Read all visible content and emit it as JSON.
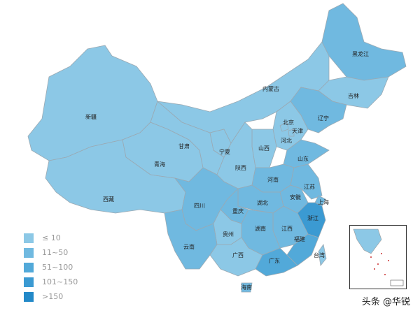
{
  "colors": {
    "le10": "#8cc8e6",
    "11_50": "#70b9e0",
    "51_100": "#52a9d9",
    "101_150": "#3b9ad2",
    "gt150": "#2389c8"
  },
  "legend": [
    {
      "label": "≤ 10",
      "color": "#8cc8e6"
    },
    {
      "label": "11~50",
      "color": "#70b9e0"
    },
    {
      "label": "51~100",
      "color": "#52a9d9"
    },
    {
      "label": "101~150",
      "color": "#3b9ad2"
    },
    {
      "label": ">150",
      "color": "#2389c8"
    }
  ],
  "provinces": [
    {
      "name": "新疆",
      "level": "le10"
    },
    {
      "name": "西藏",
      "level": "le10"
    },
    {
      "name": "青海",
      "level": "le10"
    },
    {
      "name": "甘肃",
      "level": "le10"
    },
    {
      "name": "内蒙古",
      "level": "le10"
    },
    {
      "name": "黑龙江",
      "level": "11_50"
    },
    {
      "name": "吉林",
      "level": "le10"
    },
    {
      "name": "辽宁",
      "level": "11_50"
    },
    {
      "name": "北京",
      "level": "le10"
    },
    {
      "name": "天津",
      "level": "le10"
    },
    {
      "name": "河北",
      "level": "le10"
    },
    {
      "name": "山西",
      "level": "le10"
    },
    {
      "name": "陕西",
      "level": "le10"
    },
    {
      "name": "宁夏",
      "level": "le10"
    },
    {
      "name": "山东",
      "level": "11_50"
    },
    {
      "name": "河南",
      "level": "11_50"
    },
    {
      "name": "江苏",
      "level": "11_50"
    },
    {
      "name": "安徽",
      "level": "11_50"
    },
    {
      "name": "上海",
      "level": "11_50"
    },
    {
      "name": "湖北",
      "level": "11_50"
    },
    {
      "name": "四川",
      "level": "11_50"
    },
    {
      "name": "重庆",
      "level": "11_50"
    },
    {
      "name": "浙江",
      "level": "101_150"
    },
    {
      "name": "江西",
      "level": "11_50"
    },
    {
      "name": "湖南",
      "level": "11_50"
    },
    {
      "name": "福建",
      "level": "51_100"
    },
    {
      "name": "贵州",
      "level": "le10"
    },
    {
      "name": "云南",
      "level": "11_50"
    },
    {
      "name": "广西",
      "level": "le10"
    },
    {
      "name": "广东",
      "level": "51_100"
    },
    {
      "name": "海南",
      "level": "11_50"
    },
    {
      "name": "台湾",
      "level": "le10"
    }
  ],
  "watermark": "头条 @华锐"
}
